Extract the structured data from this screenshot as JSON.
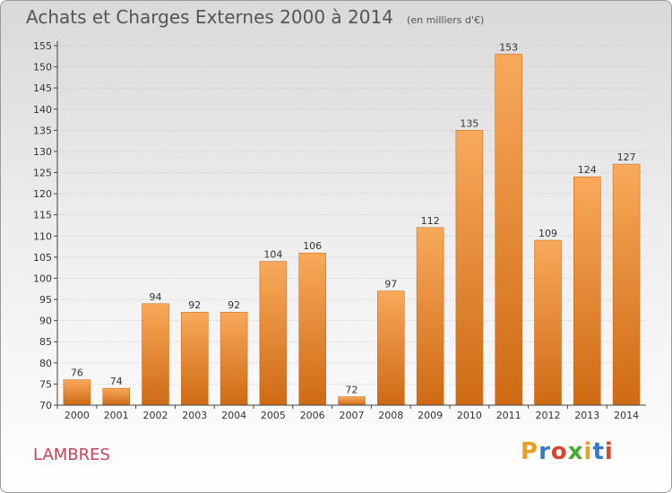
{
  "header": {
    "title": "Achats et Charges Externes 2000 à 2014",
    "subtitle": "(en milliers d'€)"
  },
  "footer": {
    "commune": "LAMBRES",
    "logo": {
      "letters": [
        "P",
        "r",
        "o",
        "x",
        "i",
        "t",
        "i"
      ],
      "colors": [
        "#e8a020",
        "#3a78c8",
        "#d8452a",
        "#4aa832",
        "#e8a020",
        "#3a78c8",
        "#d8452a"
      ]
    }
  },
  "colors": {
    "bar_light": "#f8a95a",
    "bar_dark": "#cf6a14",
    "axis": "#444444",
    "grid": "#b0b0b0",
    "label": "#333333"
  },
  "chart_data": {
    "type": "bar",
    "categories": [
      "2000",
      "2001",
      "2002",
      "2003",
      "2004",
      "2005",
      "2006",
      "2007",
      "2008",
      "2009",
      "2010",
      "2011",
      "2012",
      "2013",
      "2014"
    ],
    "values": [
      76,
      74,
      94,
      92,
      92,
      104,
      106,
      72,
      97,
      112,
      135,
      153,
      109,
      124,
      127
    ],
    "data_labels": [
      "76",
      "74",
      "94",
      "92",
      "92",
      "104",
      "106",
      "72",
      "97",
      "112",
      "135",
      "153",
      "109",
      "124",
      "127"
    ],
    "yticks": [
      70,
      75,
      80,
      85,
      90,
      95,
      100,
      105,
      110,
      115,
      120,
      125,
      130,
      135,
      140,
      145,
      150,
      155
    ],
    "ylim": [
      70,
      155
    ],
    "grid": true,
    "title": "Achats et Charges Externes 2000 à 2014",
    "xlabel": "",
    "ylabel": ""
  }
}
